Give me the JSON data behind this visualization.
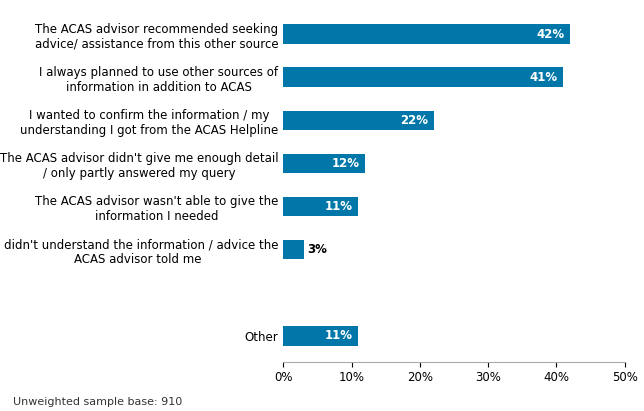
{
  "categories": [
    "I didn't understand the information / advice the\nACAS advisor told me",
    "The ACAS advisor wasn't able to give the\ninformation I needed",
    "The ACAS advisor didn't give me enough detail\n/ only partly answered my query",
    "I wanted to confirm the information / my\nunderstanding I got from the ACAS Helpline",
    "I always planned to use other sources of\ninformation in addition to ACAS",
    "The ACAS advisor recommended seeking\nadvice/ assistance from this other source"
  ],
  "values": [
    3,
    11,
    12,
    22,
    41,
    42
  ],
  "bar_color": "#0077a8",
  "label_color_inside": "#ffffff",
  "label_color_outside": "#000000",
  "background_color": "#ffffff",
  "xlim": [
    0,
    50
  ],
  "xtick_labels": [
    "0%",
    "10%",
    "20%",
    "30%",
    "40%",
    "50%"
  ],
  "xtick_values": [
    0,
    10,
    20,
    30,
    40,
    50
  ],
  "footnote": "Unweighted sample base: 910",
  "other_label": "Other",
  "other_value": 11,
  "label_fontsize": 8.5,
  "tick_fontsize": 8.5,
  "footnote_fontsize": 8,
  "bar_height": 0.45,
  "outside_threshold": 5
}
